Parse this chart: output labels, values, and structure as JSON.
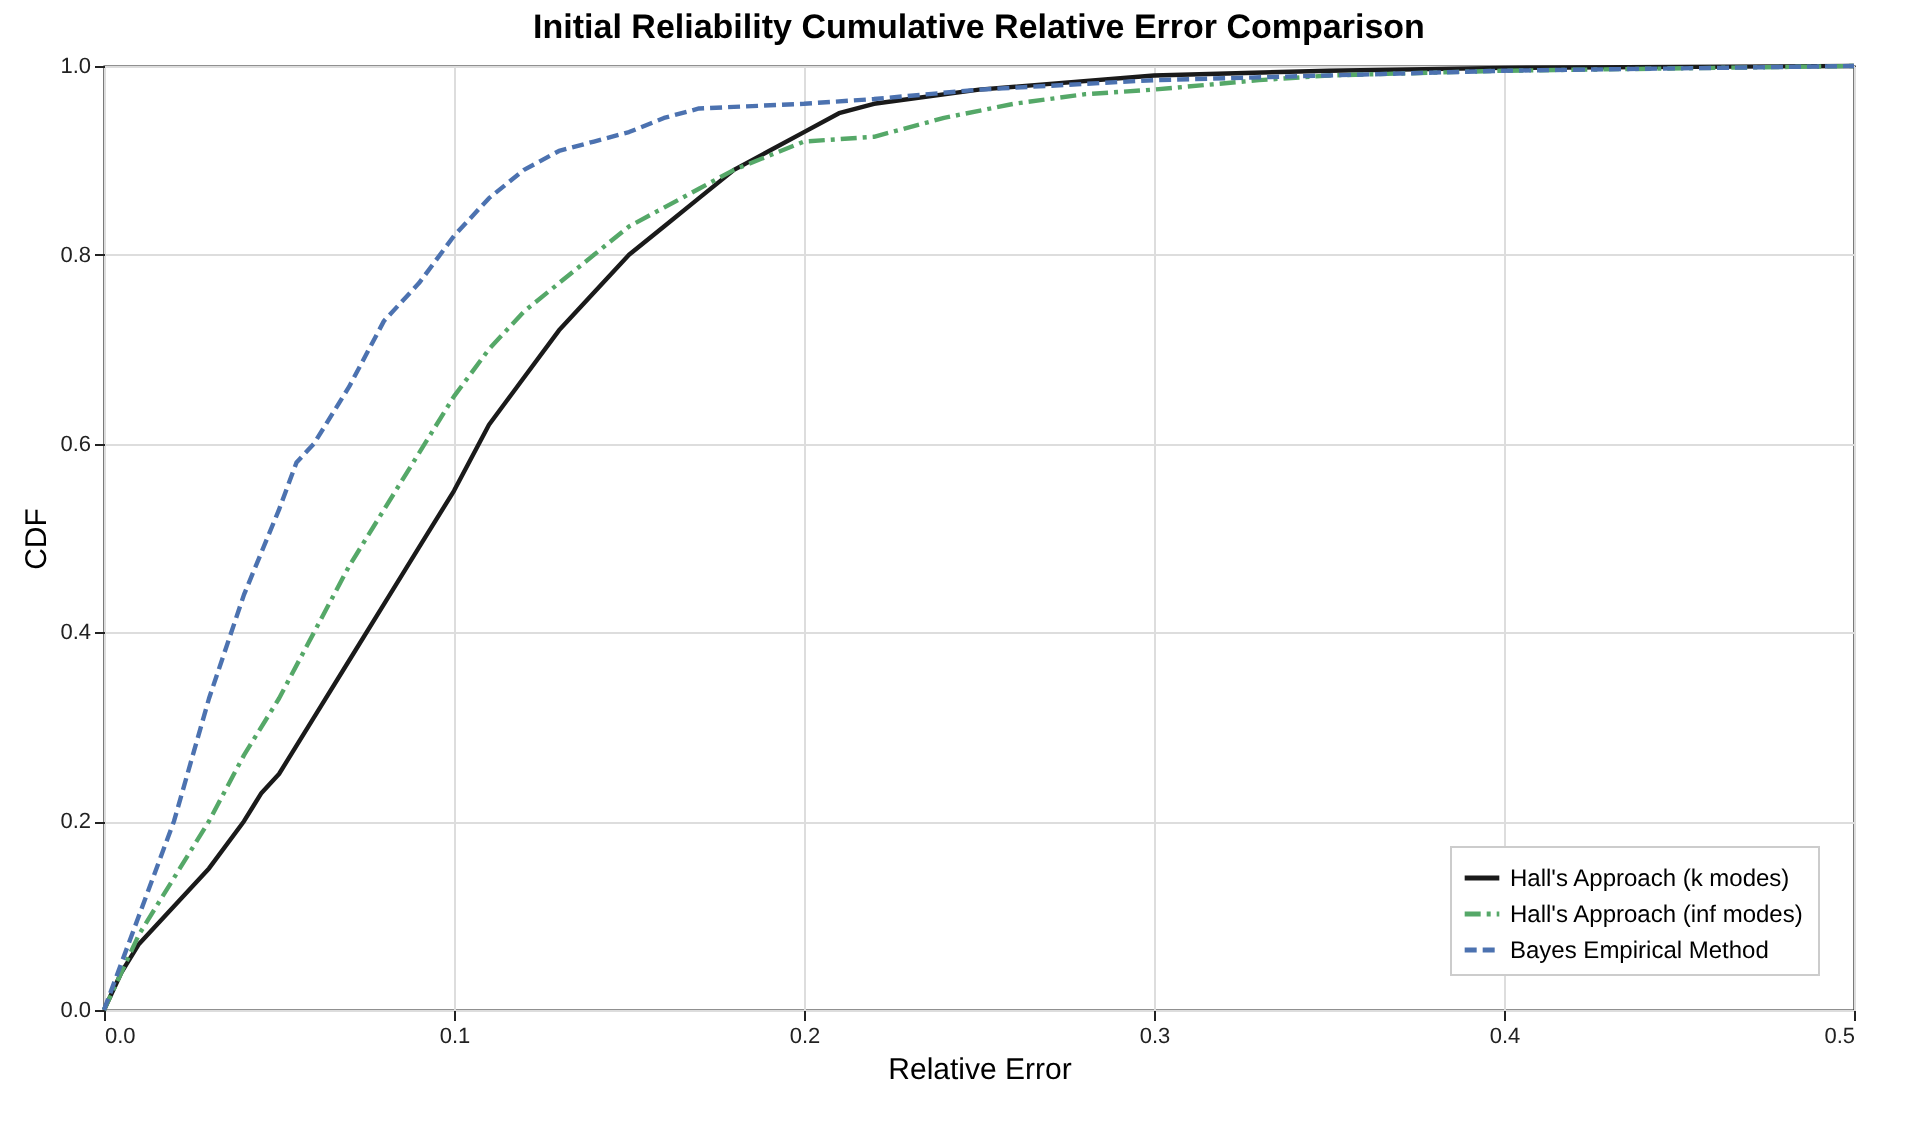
{
  "chart_data": {
    "type": "line",
    "title": "Initial Reliability Cumulative Relative Error Comparison",
    "xlabel": "Relative Error",
    "ylabel": "CDF",
    "xlim": [
      0,
      0.5
    ],
    "ylim": [
      0,
      1
    ],
    "xticks": [
      {
        "value": 0,
        "label": "0.0"
      },
      0.1,
      0.2,
      0.3,
      0.4,
      0.5
    ],
    "yticks": [
      {
        "value": 0,
        "label": "0.0"
      },
      0.2,
      0.4,
      0.6,
      0.8,
      {
        "value": 1,
        "label": "1.0"
      }
    ],
    "grid": true,
    "legend": "bottom right",
    "marker": "none",
    "series": [
      {
        "name": "Hall's Approach (k modes)",
        "color": "#1a1a1a",
        "line_style": "solid",
        "x": [
          0,
          0.005,
          0.01,
          0.02,
          0.03,
          0.04,
          0.045,
          0.05,
          0.06,
          0.07,
          0.08,
          0.09,
          0.1,
          0.11,
          0.12,
          0.13,
          0.14,
          0.15,
          0.16,
          0.17,
          0.18,
          0.19,
          0.2,
          0.21,
          0.22,
          0.25,
          0.3,
          0.35,
          0.4,
          0.5
        ],
        "values": [
          0,
          0.04,
          0.07,
          0.11,
          0.15,
          0.2,
          0.23,
          0.25,
          0.31,
          0.37,
          0.43,
          0.49,
          0.55,
          0.62,
          0.67,
          0.72,
          0.76,
          0.8,
          0.83,
          0.86,
          0.89,
          0.91,
          0.93,
          0.95,
          0.96,
          0.975,
          0.99,
          0.995,
          0.998,
          1
        ]
      },
      {
        "name": "Hall's Approach (inf modes)",
        "color": "#55a868",
        "line_style": "dashdot",
        "x": [
          0,
          0.01,
          0.02,
          0.03,
          0.04,
          0.05,
          0.06,
          0.07,
          0.08,
          0.09,
          0.1,
          0.11,
          0.12,
          0.13,
          0.14,
          0.15,
          0.16,
          0.17,
          0.18,
          0.19,
          0.2,
          0.22,
          0.24,
          0.26,
          0.28,
          0.3,
          0.33,
          0.35,
          0.4,
          0.5
        ],
        "values": [
          0,
          0.08,
          0.14,
          0.2,
          0.27,
          0.33,
          0.4,
          0.47,
          0.53,
          0.59,
          0.65,
          0.7,
          0.74,
          0.77,
          0.8,
          0.83,
          0.85,
          0.87,
          0.89,
          0.905,
          0.92,
          0.925,
          0.945,
          0.96,
          0.97,
          0.975,
          0.985,
          0.99,
          0.995,
          1
        ]
      },
      {
        "name": "Bayes Empirical Method",
        "color": "#4c72b0",
        "line_style": "dashed",
        "x": [
          0,
          0.01,
          0.02,
          0.03,
          0.04,
          0.05,
          0.055,
          0.06,
          0.07,
          0.08,
          0.09,
          0.1,
          0.11,
          0.12,
          0.13,
          0.14,
          0.15,
          0.16,
          0.17,
          0.2,
          0.22,
          0.25,
          0.3,
          0.35,
          0.4,
          0.5
        ],
        "values": [
          0,
          0.1,
          0.2,
          0.33,
          0.44,
          0.53,
          0.58,
          0.6,
          0.66,
          0.73,
          0.77,
          0.82,
          0.86,
          0.89,
          0.91,
          0.92,
          0.93,
          0.945,
          0.955,
          0.96,
          0.965,
          0.975,
          0.985,
          0.99,
          0.995,
          1
        ]
      }
    ]
  }
}
